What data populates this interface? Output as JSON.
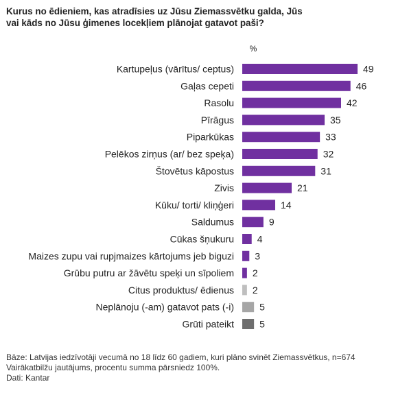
{
  "title_lines": [
    "Kurus no ēdieniem, kas atradīsies uz Jūsu Ziemassvētku galda, Jūs",
    "vai kāds no Jūsu ģimenes locekļiem plānojat gatavot paši?"
  ],
  "notes": {
    "base": "Bāze: Latvijas iedzīvotāji vecumā no 18 līdz 60 gadiem, kuri plāno svinēt Ziemassvētkus, n=674",
    "multi": "Vairākatbilžu jautājums, procentu summa pārsniedz 100%.",
    "source": "Dati: Kantar"
  },
  "colors": {
    "purple": "#7030a0",
    "light_gray": "#bfbfbf",
    "mid_gray": "#a6a6a6",
    "dark_gray": "#6e6e6e"
  },
  "chart_data": {
    "type": "bar",
    "orientation": "horizontal",
    "unit_label": "%",
    "xlim": [
      0,
      49
    ],
    "categories": [
      "Kartupeļus (vārītus/ ceptus)",
      "Gaļas cepeti",
      "Rasolu",
      "Pīrāgus",
      "Piparkūkas",
      "Pelēkos zirņus (ar/ bez speķa)",
      "Štovētus kāpostus",
      "Zivis",
      "Kūku/ torti/ kliņģeri",
      "Saldumus",
      "Cūkas šņukuru",
      "Maizes zupu vai rupjmaizes kārtojums jeb biguzi",
      "Grūbu putru ar žāvētu speķi un sīpoliem",
      "Citus produktus/ ēdienus",
      "Neplānoju (-am) gatavot pats (-i)",
      "Grūti pateikt"
    ],
    "values": [
      49,
      46,
      42,
      35,
      33,
      32,
      31,
      21,
      14,
      9,
      4,
      3,
      2,
      2,
      5,
      5
    ],
    "bar_colors": [
      "purple",
      "purple",
      "purple",
      "purple",
      "purple",
      "purple",
      "purple",
      "purple",
      "purple",
      "purple",
      "purple",
      "purple",
      "purple",
      "light_gray",
      "mid_gray",
      "dark_gray"
    ]
  }
}
